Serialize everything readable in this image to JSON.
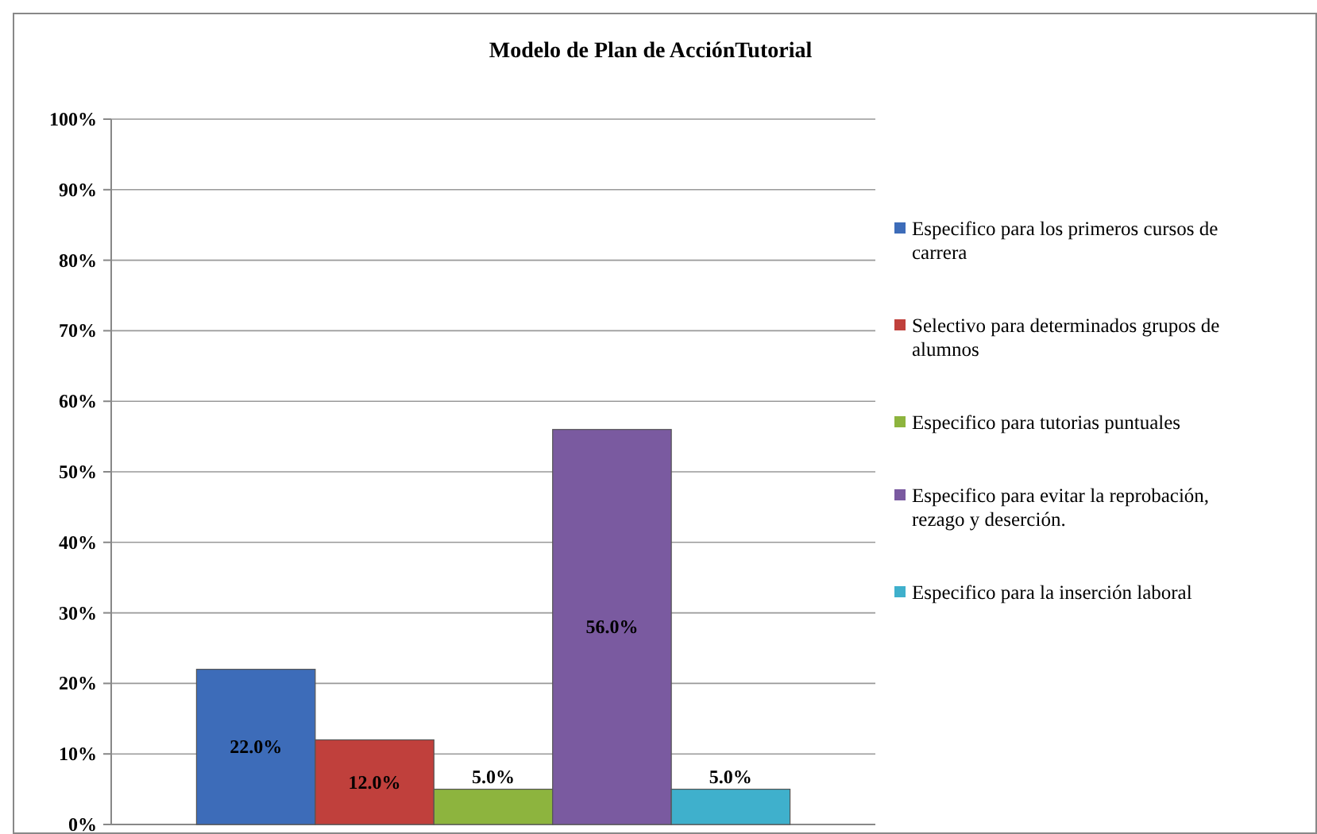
{
  "chart_data": {
    "type": "bar",
    "title": "Modelo de Plan de AcciónTutorial",
    "categories": [
      null
    ],
    "series": [
      {
        "name": "Especifico para los primeros cursos de carrera",
        "color": "#3d6cb9",
        "values": [
          22.0
        ],
        "value_labels": [
          "22.0%"
        ]
      },
      {
        "name": "Selectivo para determinados grupos de alumnos",
        "color": "#c0403c",
        "values": [
          12.0
        ],
        "value_labels": [
          "12.0%"
        ]
      },
      {
        "name": "Especifico para tutorias puntuales",
        "color": "#8db43e",
        "values": [
          5.0
        ],
        "value_labels": [
          "5.0%"
        ]
      },
      {
        "name": "Especifico para evitar la reprobación, rezago y deserción.",
        "color": "#7a5aa0",
        "values": [
          56.0
        ],
        "value_labels": [
          "56.0%"
        ]
      },
      {
        "name": "Especifico para la inserción laboral",
        "color": "#3fb0cc",
        "values": [
          5.0
        ],
        "value_labels": [
          "5.0%"
        ]
      }
    ],
    "ylim": [
      0,
      100
    ],
    "yticks": [
      {
        "value": 0,
        "label": "0%"
      },
      {
        "value": 10,
        "label": "10%"
      },
      {
        "value": 20,
        "label": "20%"
      },
      {
        "value": 30,
        "label": "30%"
      },
      {
        "value": 40,
        "label": "40%"
      },
      {
        "value": 50,
        "label": "50%"
      },
      {
        "value": 60,
        "label": "60%"
      },
      {
        "value": 70,
        "label": "70%"
      },
      {
        "value": 80,
        "label": "80%"
      },
      {
        "value": 90,
        "label": "90%"
      },
      {
        "value": 100,
        "label": "100%"
      }
    ],
    "grid": "y",
    "legend": "right"
  }
}
